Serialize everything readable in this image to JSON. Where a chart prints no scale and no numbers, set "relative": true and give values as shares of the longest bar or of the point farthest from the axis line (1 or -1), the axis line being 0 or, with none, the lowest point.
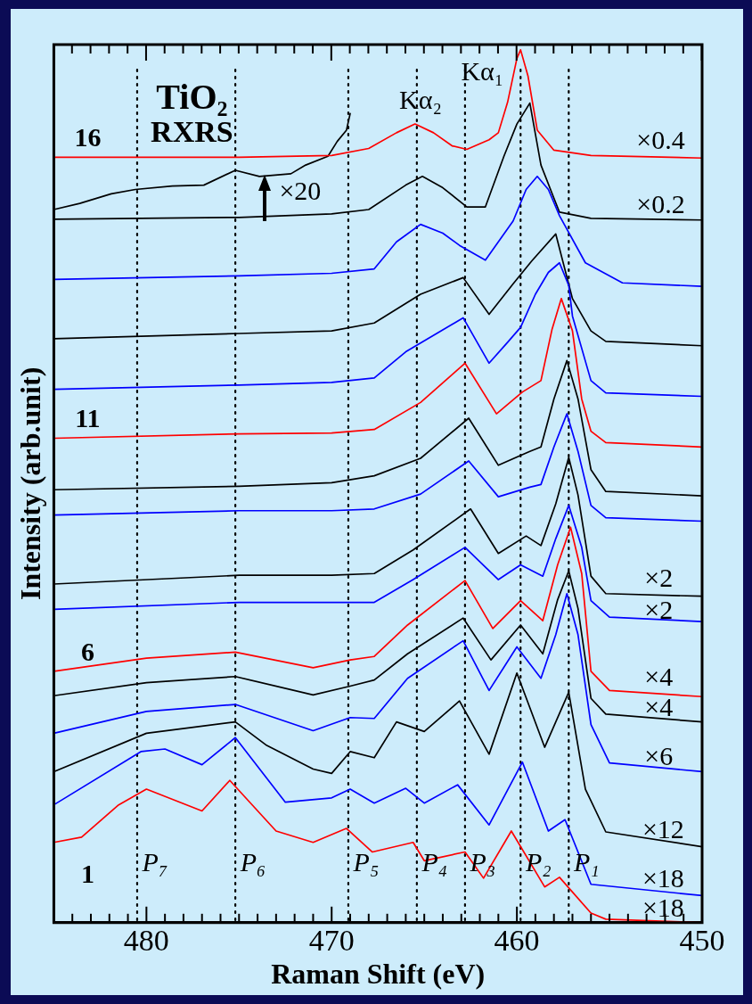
{
  "chart_data": {
    "type": "line",
    "title": "TiO₂",
    "subtitle": "RXRS",
    "xlabel": "Raman Shift (eV)",
    "ylabel": "Intensity (arb.unit)",
    "relative": true,
    "xlim": [
      485,
      450
    ],
    "xticks": [
      {
        "value": 485,
        "label": null
      },
      {
        "value": 484,
        "label": null
      },
      {
        "value": 483,
        "label": null
      },
      {
        "value": 482,
        "label": null
      },
      {
        "value": 481,
        "label": null
      },
      480,
      {
        "value": 479,
        "label": null
      },
      {
        "value": 478,
        "label": null
      },
      {
        "value": 477,
        "label": null
      },
      {
        "value": 476,
        "label": null
      },
      {
        "value": 475,
        "label": null
      },
      {
        "value": 474,
        "label": null
      },
      {
        "value": 473,
        "label": null
      },
      {
        "value": 472,
        "label": null
      },
      {
        "value": 471,
        "label": null
      },
      470,
      {
        "value": 469,
        "label": null
      },
      {
        "value": 468,
        "label": null
      },
      {
        "value": 467,
        "label": null
      },
      {
        "value": 466,
        "label": null
      },
      {
        "value": 465,
        "label": null
      },
      {
        "value": 464,
        "label": null
      },
      {
        "value": 463,
        "label": null
      },
      {
        "value": 462,
        "label": null
      },
      {
        "value": 461,
        "label": null
      },
      460,
      {
        "value": 459,
        "label": null
      },
      {
        "value": 458,
        "label": null
      },
      {
        "value": 457,
        "label": null
      },
      {
        "value": 456,
        "label": null
      },
      {
        "value": 455,
        "label": null
      },
      {
        "value": 454,
        "label": null
      },
      {
        "value": 453,
        "label": null
      },
      {
        "value": 452,
        "label": null
      },
      {
        "value": 451,
        "label": null
      },
      450
    ],
    "grid": false,
    "legend": false,
    "marker": "none",
    "line_style": "solid",
    "series": [
      {
        "name": "1",
        "color": "#ff0000",
        "x": [
          485,
          483.5,
          481.5,
          480,
          477,
          475.5,
          473,
          471,
          469.2,
          467.8,
          465.6,
          465,
          462.8,
          461.8,
          460.3,
          458.5,
          457.7,
          456,
          455.2,
          450
        ],
        "values": [
          0.092,
          0.098,
          0.135,
          0.153,
          0.128,
          0.163,
          0.105,
          0.092,
          0.108,
          0.081,
          0.092,
          0.071,
          0.081,
          0.051,
          0.105,
          0.041,
          0.052,
          0.011,
          0.004,
          0
        ]
      },
      {
        "color": "#0000ff",
        "x": [
          485,
          480.3,
          479,
          477,
          475.2,
          472.5,
          470,
          469,
          467.7,
          466,
          465,
          463.2,
          461.5,
          459.7,
          458.3,
          457.4,
          456,
          450
        ],
        "values": [
          0.135,
          0.196,
          0.199,
          0.181,
          0.212,
          0.138,
          0.143,
          0.153,
          0.137,
          0.154,
          0.137,
          0.158,
          0.112,
          0.184,
          0.105,
          0.118,
          0.044,
          0.031
        ]
      },
      {
        "color": "#000000",
        "x": [
          485,
          480,
          475.2,
          473.5,
          471,
          470,
          469,
          467.7,
          466.5,
          465,
          463.1,
          461.5,
          460,
          458.5,
          457.2,
          456.3,
          455.2,
          450
        ],
        "values": [
          0.173,
          0.217,
          0.23,
          0.203,
          0.176,
          0.171,
          0.196,
          0.189,
          0.23,
          0.219,
          0.254,
          0.193,
          0.286,
          0.201,
          0.264,
          0.153,
          0.104,
          0.087
        ]
      },
      {
        "color": "#0000ff",
        "x": [
          485,
          480,
          475.2,
          471,
          469,
          467.7,
          465.9,
          462.9,
          461.5,
          460,
          458.7,
          457.9,
          457.3,
          456.7,
          456,
          455,
          450
        ],
        "values": [
          0.217,
          0.242,
          0.25,
          0.22,
          0.235,
          0.234,
          0.28,
          0.323,
          0.266,
          0.316,
          0.28,
          0.33,
          0.377,
          0.33,
          0.227,
          0.183,
          0.173
        ]
      },
      {
        "color": "#000000",
        "x": [
          485,
          480,
          475.2,
          471,
          469,
          467.7,
          465.9,
          462.9,
          461.4,
          459.8,
          458.6,
          457.8,
          457.2,
          456.7,
          456,
          455.2,
          450
        ],
        "values": [
          0.26,
          0.275,
          0.282,
          0.261,
          0.271,
          0.278,
          0.308,
          0.349,
          0.301,
          0.341,
          0.308,
          0.37,
          0.403,
          0.36,
          0.257,
          0.239,
          0.23
        ]
      },
      {
        "name": "6",
        "color": "#ff0000",
        "x": [
          485,
          480,
          475.2,
          471,
          469,
          467.7,
          465.9,
          462.8,
          461.3,
          459.8,
          458.6,
          457.8,
          457.1,
          456.5,
          456,
          455,
          450
        ],
        "values": [
          0.288,
          0.303,
          0.31,
          0.292,
          0.301,
          0.305,
          0.341,
          0.392,
          0.337,
          0.369,
          0.346,
          0.41,
          0.453,
          0.4,
          0.288,
          0.266,
          0.259
        ]
      },
      {
        "color": "#0000ff",
        "x": [
          485,
          475,
          470,
          467.7,
          465.6,
          462.8,
          461,
          459.8,
          458.6,
          457.9,
          457.2,
          456.5,
          456,
          455,
          450
        ],
        "values": [
          0.359,
          0.367,
          0.367,
          0.367,
          0.393,
          0.43,
          0.393,
          0.41,
          0.397,
          0.44,
          0.478,
          0.43,
          0.369,
          0.35,
          0.345
        ]
      },
      {
        "color": "#000000",
        "x": [
          485,
          475,
          470,
          467.7,
          465.6,
          462.5,
          461,
          459.5,
          458.7,
          457.9,
          457.2,
          456.7,
          456,
          455.2,
          450
        ],
        "values": [
          0.388,
          0.398,
          0.398,
          0.4,
          0.427,
          0.474,
          0.423,
          0.443,
          0.432,
          0.48,
          0.533,
          0.49,
          0.397,
          0.377,
          0.374
        ]
      },
      {
        "color": "#0000ff",
        "x": [
          485,
          475,
          470,
          467.7,
          465.2,
          462.6,
          461,
          459.3,
          458.7,
          458,
          457.3,
          456.7,
          456,
          455.2,
          450
        ],
        "values": [
          0.467,
          0.472,
          0.472,
          0.474,
          0.491,
          0.529,
          0.488,
          0.499,
          0.502,
          0.545,
          0.583,
          0.54,
          0.478,
          0.464,
          0.46
        ]
      },
      {
        "color": "#000000",
        "x": [
          485,
          475,
          470,
          467.7,
          465.2,
          462.6,
          461,
          459.3,
          458.7,
          458,
          457.3,
          456.7,
          456,
          455.2,
          450
        ],
        "values": [
          0.496,
          0.5,
          0.504,
          0.512,
          0.532,
          0.578,
          0.524,
          0.54,
          0.545,
          0.6,
          0.644,
          0.6,
          0.519,
          0.494,
          0.489
        ]
      },
      {
        "name": "11",
        "color": "#ff0000",
        "x": [
          485,
          475,
          470,
          467.7,
          465.2,
          462.8,
          461.1,
          459.7,
          458.7,
          458.1,
          457.6,
          457,
          456.5,
          456,
          455.2,
          450
        ],
        "values": [
          0.555,
          0.56,
          0.561,
          0.565,
          0.596,
          0.641,
          0.583,
          0.608,
          0.621,
          0.68,
          0.715,
          0.678,
          0.6,
          0.563,
          0.55,
          0.545
        ]
      },
      {
        "color": "#0000ff",
        "x": [
          485,
          475,
          470,
          467.7,
          466,
          462.9,
          461.5,
          460.5,
          459.8,
          459,
          458.3,
          457.7,
          457.2,
          457,
          456,
          455.2,
          450
        ],
        "values": [
          0.611,
          0.616,
          0.619,
          0.624,
          0.654,
          0.693,
          0.641,
          0.665,
          0.682,
          0.72,
          0.745,
          0.756,
          0.73,
          0.695,
          0.621,
          0.607,
          0.603
        ]
      },
      {
        "color": "#000000",
        "x": [
          485,
          475,
          470,
          467.7,
          465.2,
          462.9,
          461.5,
          460.2,
          459.2,
          457.9,
          457,
          456,
          455.2,
          450
        ],
        "values": [
          0.669,
          0.675,
          0.678,
          0.687,
          0.72,
          0.739,
          0.697,
          0.732,
          0.758,
          0.789,
          0.715,
          0.678,
          0.666,
          0.661
        ]
      },
      {
        "color": "#0000ff",
        "x": [
          485,
          475,
          470,
          467.7,
          466.5,
          465.2,
          464,
          463.1,
          461.7,
          460.2,
          459.5,
          458.9,
          458.3,
          457.7,
          456.3,
          454.3,
          450
        ],
        "values": [
          0.737,
          0.741,
          0.744,
          0.749,
          0.78,
          0.8,
          0.79,
          0.776,
          0.759,
          0.804,
          0.84,
          0.855,
          0.84,
          0.81,
          0.756,
          0.733,
          0.729
        ]
      },
      {
        "color": "#000000",
        "x": [
          485,
          475,
          470,
          468,
          466,
          465.1,
          464,
          462.7,
          461.7,
          460.7,
          460,
          459.3,
          458.7,
          458,
          457.7,
          456,
          450
        ],
        "values": [
          0.806,
          0.808,
          0.812,
          0.817,
          0.845,
          0.855,
          0.842,
          0.82,
          0.82,
          0.878,
          0.915,
          0.939,
          0.868,
          0.83,
          0.814,
          0.807,
          0.805
        ]
      },
      {
        "name": "16",
        "color": "#ff0000",
        "x": [
          485,
          475,
          470,
          468,
          466.5,
          465.5,
          464.5,
          463.5,
          462.7,
          461.5,
          461,
          460.5,
          460,
          459.8,
          459.4,
          458.9,
          458,
          456,
          450
        ],
        "values": [
          0.877,
          0.877,
          0.879,
          0.887,
          0.905,
          0.915,
          0.905,
          0.89,
          0.886,
          0.897,
          0.905,
          0.94,
          0.99,
          1,
          0.97,
          0.908,
          0.885,
          0.879,
          0.876
        ]
      },
      {
        "color": "#000000",
        "x": [
          485,
          483.6,
          481.9,
          480.6,
          478.6,
          476.9,
          475.2,
          473.9,
          472.2,
          471.4,
          470.2,
          469.7,
          469.2,
          469
        ],
        "values": [
          0.817,
          0.824,
          0.835,
          0.84,
          0.844,
          0.845,
          0.862,
          0.855,
          0.858,
          0.868,
          0.878,
          0.895,
          0.908,
          0.927
        ]
      }
    ],
    "ref_lines": [
      {
        "axis": "x",
        "value": 480.5,
        "label": "P₇",
        "line_style": "dotted",
        "color": "#000000"
      },
      {
        "axis": "x",
        "value": 475.2,
        "label": "P₆",
        "line_style": "dotted",
        "color": "#000000"
      },
      {
        "axis": "x",
        "value": 469.1,
        "label": "P₅",
        "line_style": "dotted",
        "color": "#000000"
      },
      {
        "axis": "x",
        "value": 465.4,
        "label": "P₄",
        "line_style": "dotted",
        "color": "#000000"
      },
      {
        "axis": "x",
        "value": 462.8,
        "label": "P₃",
        "line_style": "dotted",
        "color": "#000000"
      },
      {
        "axis": "x",
        "value": 459.8,
        "label": "P₂",
        "line_style": "dotted",
        "color": "#000000"
      },
      {
        "axis": "x",
        "value": 457.2,
        "label": "P₁",
        "line_style": "dotted",
        "color": "#000000"
      }
    ],
    "annotations": [
      {
        "text": "Kα₂",
        "x": 465.2,
        "y": 0.94
      },
      "Kα₁",
      "×20",
      "×0.4",
      "×0.2",
      "×2",
      "×2",
      "×4",
      "×4",
      "×6",
      "×12",
      "×18",
      "×18"
    ]
  }
}
